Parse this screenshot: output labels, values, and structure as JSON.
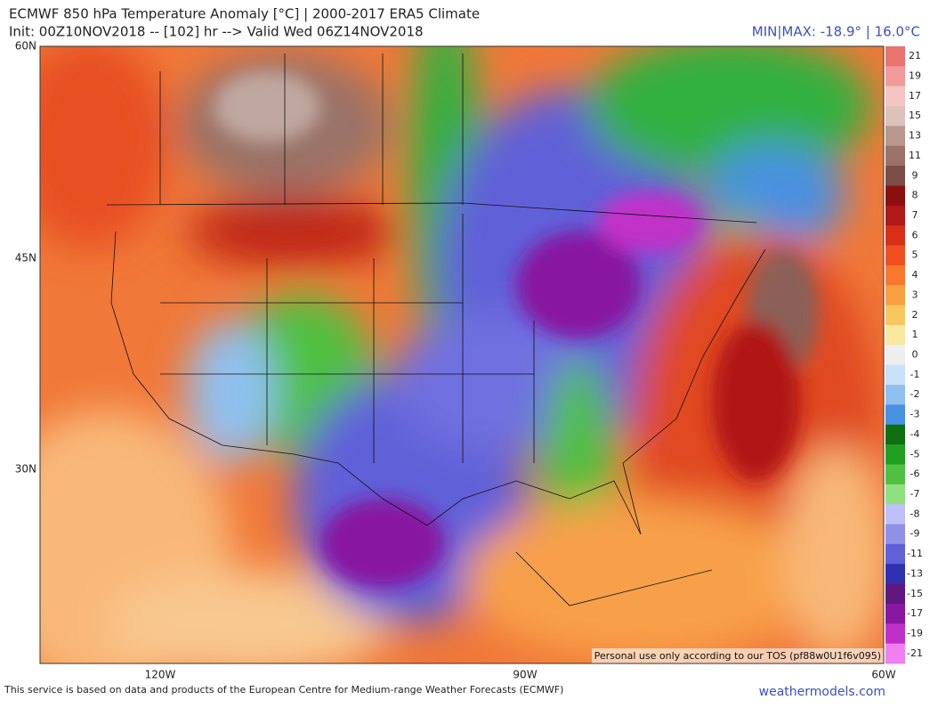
{
  "header": {
    "title": "ECMWF 850 hPa Temperature Anomaly [°C] | 2000-2017 ERA5 Climate",
    "subtitle": "Init: 00Z10NOV2018 -- [102] hr --> Valid Wed 06Z14NOV2018",
    "minmax": "MIN|MAX: -18.9° | 16.0°C"
  },
  "map": {
    "lat_labels": [
      "60N",
      "45N",
      "30N"
    ],
    "lon_labels": [
      "120W",
      "90W",
      "60W"
    ],
    "notice": "Personal use only according to our TOS (pf88w0U1f6v095)"
  },
  "colorbar": [
    {
      "value": 21,
      "color": "#e8736f"
    },
    {
      "value": 19,
      "color": "#f09a9a"
    },
    {
      "value": 17,
      "color": "#f5c4c4"
    },
    {
      "value": 15,
      "color": "#dcc0bc"
    },
    {
      "value": 13,
      "color": "#b8968e"
    },
    {
      "value": 11,
      "color": "#9a7268"
    },
    {
      "value": 9,
      "color": "#7a4e46"
    },
    {
      "value": 8,
      "color": "#8a1010"
    },
    {
      "value": 7,
      "color": "#b01818"
    },
    {
      "value": 6,
      "color": "#d83018"
    },
    {
      "value": 5,
      "color": "#f05020"
    },
    {
      "value": 4,
      "color": "#f87830"
    },
    {
      "value": 3,
      "color": "#f8a040"
    },
    {
      "value": 2,
      "color": "#f8c860"
    },
    {
      "value": 1,
      "color": "#f8e8a0"
    },
    {
      "value": 0,
      "color": "#eeeeee"
    },
    {
      "value": -1,
      "color": "#c8e0f8"
    },
    {
      "value": -2,
      "color": "#90c0f0"
    },
    {
      "value": -3,
      "color": "#4890e0"
    },
    {
      "value": -4,
      "color": "#107010"
    },
    {
      "value": -5,
      "color": "#20a020"
    },
    {
      "value": -6,
      "color": "#50c040"
    },
    {
      "value": -7,
      "color": "#90e080"
    },
    {
      "value": -8,
      "color": "#c0c0f8"
    },
    {
      "value": -9,
      "color": "#9090e8"
    },
    {
      "value": -11,
      "color": "#6060d8"
    },
    {
      "value": -13,
      "color": "#3030b0"
    },
    {
      "value": -15,
      "color": "#601880"
    },
    {
      "value": -17,
      "color": "#8818a0"
    },
    {
      "value": -19,
      "color": "#c030c8"
    },
    {
      "value": -21,
      "color": "#f080f0"
    }
  ],
  "footer": {
    "text": "This service is based on data and products of the European Centre for Medium-range Weather Forecasts (ECMWF)",
    "brand": "weathermodels.com"
  }
}
